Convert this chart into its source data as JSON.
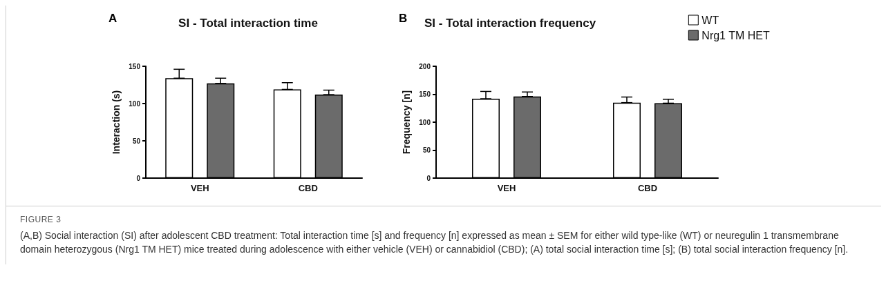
{
  "chart_data": [
    {
      "type": "bar",
      "title": "SI - Total interaction time",
      "ylabel": "Interaction (s)",
      "categories": [
        "VEH",
        "CBD"
      ],
      "series": [
        {
          "color": "#ffffff",
          "values": [
            134,
            119
          ],
          "errors": [
            [
              134,
              146
            ],
            [
              119,
              128
            ]
          ]
        },
        {
          "color": "#6b6b6b",
          "values": [
            127,
            112
          ],
          "errors": [
            [
              127,
              134
            ],
            [
              112,
              118
            ]
          ]
        }
      ],
      "ylim": [
        0,
        150
      ],
      "yticks": [
        0,
        50,
        100,
        150
      ],
      "grid": false,
      "legend": false,
      "annotations": [
        "A"
      ]
    },
    {
      "type": "bar",
      "title": "SI - Total interaction frequency",
      "ylabel": "Frequency [n]",
      "categories": [
        "VEH",
        "CBD"
      ],
      "series": [
        {
          "name": "WT",
          "color": "#ffffff",
          "values": [
            142,
            135
          ],
          "errors": [
            [
              142,
              155
            ],
            [
              135,
              145
            ]
          ]
        },
        {
          "name": "Nrg1 TM HET",
          "color": "#6b6b6b",
          "values": [
            146,
            134
          ],
          "errors": [
            [
              146,
              154
            ],
            [
              134,
              141
            ]
          ]
        }
      ],
      "ylim": [
        0,
        200
      ],
      "yticks": [
        0,
        50,
        100,
        150,
        200
      ],
      "grid": false,
      "legend": "top right",
      "annotations": [
        "B",
        "FIGURE 3",
        "(A,B) Social interaction (SI) after adolescent CBD treatment: Total interaction time [s] and frequency [n] expressed as mean ± SEM for either wild type-like (WT) or neuregulin 1 transmembrane domain heterozygous (Nrg1 TM HET) mice treated during adolescence with either vehicle (VEH) or cannabidiol (CBD); (A) total social interaction time [s]; (B) total social interaction frequency [n]."
      ]
    }
  ]
}
